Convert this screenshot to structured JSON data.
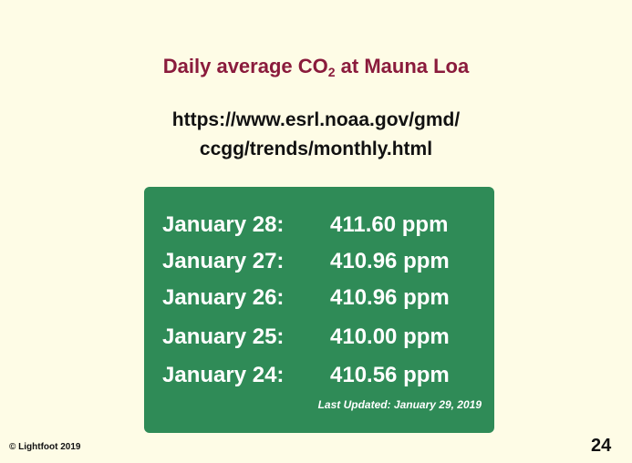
{
  "slide": {
    "title": {
      "before": "Daily average CO",
      "subscript": "2",
      "after": " at Mauna Loa"
    },
    "url_lines": [
      "https://www.esrl.noaa.gov/gmd/",
      "ccgg/trends/monthly.html"
    ],
    "readings": [
      {
        "date": "January 28:",
        "value": "411.60 ppm"
      },
      {
        "date": "January 27:",
        "value": "410.96 ppm"
      },
      {
        "date": "January 26:",
        "value": "410.96 ppm"
      },
      {
        "date": "January 25:",
        "value": "410.00 ppm"
      },
      {
        "date": "January 24:",
        "value": "410.56 ppm"
      }
    ],
    "note": "Last Updated: January 29, 2019",
    "footer": "© Lightfoot 2019",
    "page_number": "24"
  }
}
